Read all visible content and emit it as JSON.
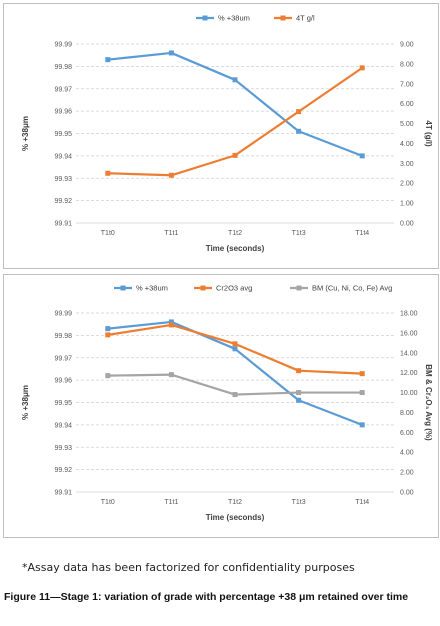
{
  "chart_data": [
    {
      "type": "line",
      "categories": [
        "T1t0",
        "T1t1",
        "T1t2",
        "T1t3",
        "T1t4"
      ],
      "xlabel": "Time (seconds)",
      "ylabel": "% +38μm",
      "y2label": "4T (g/l)",
      "ylim": [
        99.91,
        99.99
      ],
      "yticks": [
        "99.91",
        "99.92",
        "99.93",
        "99.94",
        "99.95",
        "99.96",
        "99.97",
        "99.98",
        "99.99"
      ],
      "y2lim": [
        0,
        9
      ],
      "y2ticks": [
        "0.00",
        "1.00",
        "2.00",
        "3.00",
        "4.00",
        "5.00",
        "6.00",
        "7.00",
        "8.00",
        "9.00"
      ],
      "grid": true,
      "legend_position": "top",
      "series": [
        {
          "name": "% +38um",
          "axis": "left",
          "color": "#5b9bd5",
          "values": [
            99.983,
            99.986,
            99.974,
            99.951,
            99.94
          ]
        },
        {
          "name": "4T g/l",
          "axis": "right",
          "color": "#ed7d31",
          "values": [
            2.5,
            2.4,
            3.4,
            5.6,
            7.8
          ]
        }
      ]
    },
    {
      "type": "line",
      "categories": [
        "T1t0",
        "T1t1",
        "T1t2",
        "T1t3",
        "T1t4"
      ],
      "xlabel": "Time (seconds)",
      "ylabel": "% +38μm",
      "y2label": "BM & Cr₂O₃ Avg (%)",
      "ylim": [
        99.91,
        99.99
      ],
      "yticks": [
        "99.91",
        "99.92",
        "99.93",
        "99.94",
        "99.95",
        "99.96",
        "99.97",
        "99.98",
        "99.99"
      ],
      "y2lim": [
        0,
        18
      ],
      "y2ticks": [
        "0.00",
        "2.00",
        "4.00",
        "6.00",
        "8.00",
        "10.00",
        "12.00",
        "14.00",
        "16.00",
        "18.00"
      ],
      "grid": true,
      "legend_position": "top",
      "series": [
        {
          "name": "% +38um",
          "axis": "left",
          "color": "#5b9bd5",
          "values": [
            99.983,
            99.986,
            99.974,
            99.951,
            99.94
          ]
        },
        {
          "name": "Cr2O3 avg",
          "axis": "right",
          "color": "#ed7d31",
          "values": [
            15.8,
            16.8,
            14.9,
            12.2,
            11.9
          ]
        },
        {
          "name": "BM (Cu, Ni, Co, Fe) Avg",
          "axis": "right",
          "color": "#a5a5a5",
          "values": [
            11.7,
            11.8,
            9.8,
            10.0,
            10.0
          ]
        }
      ]
    }
  ],
  "footnote": "*Assay data has been factorized for confidentiality purposes",
  "caption": "Figure 11—Stage 1: variation of grade with percentage +38 μm retained over time"
}
